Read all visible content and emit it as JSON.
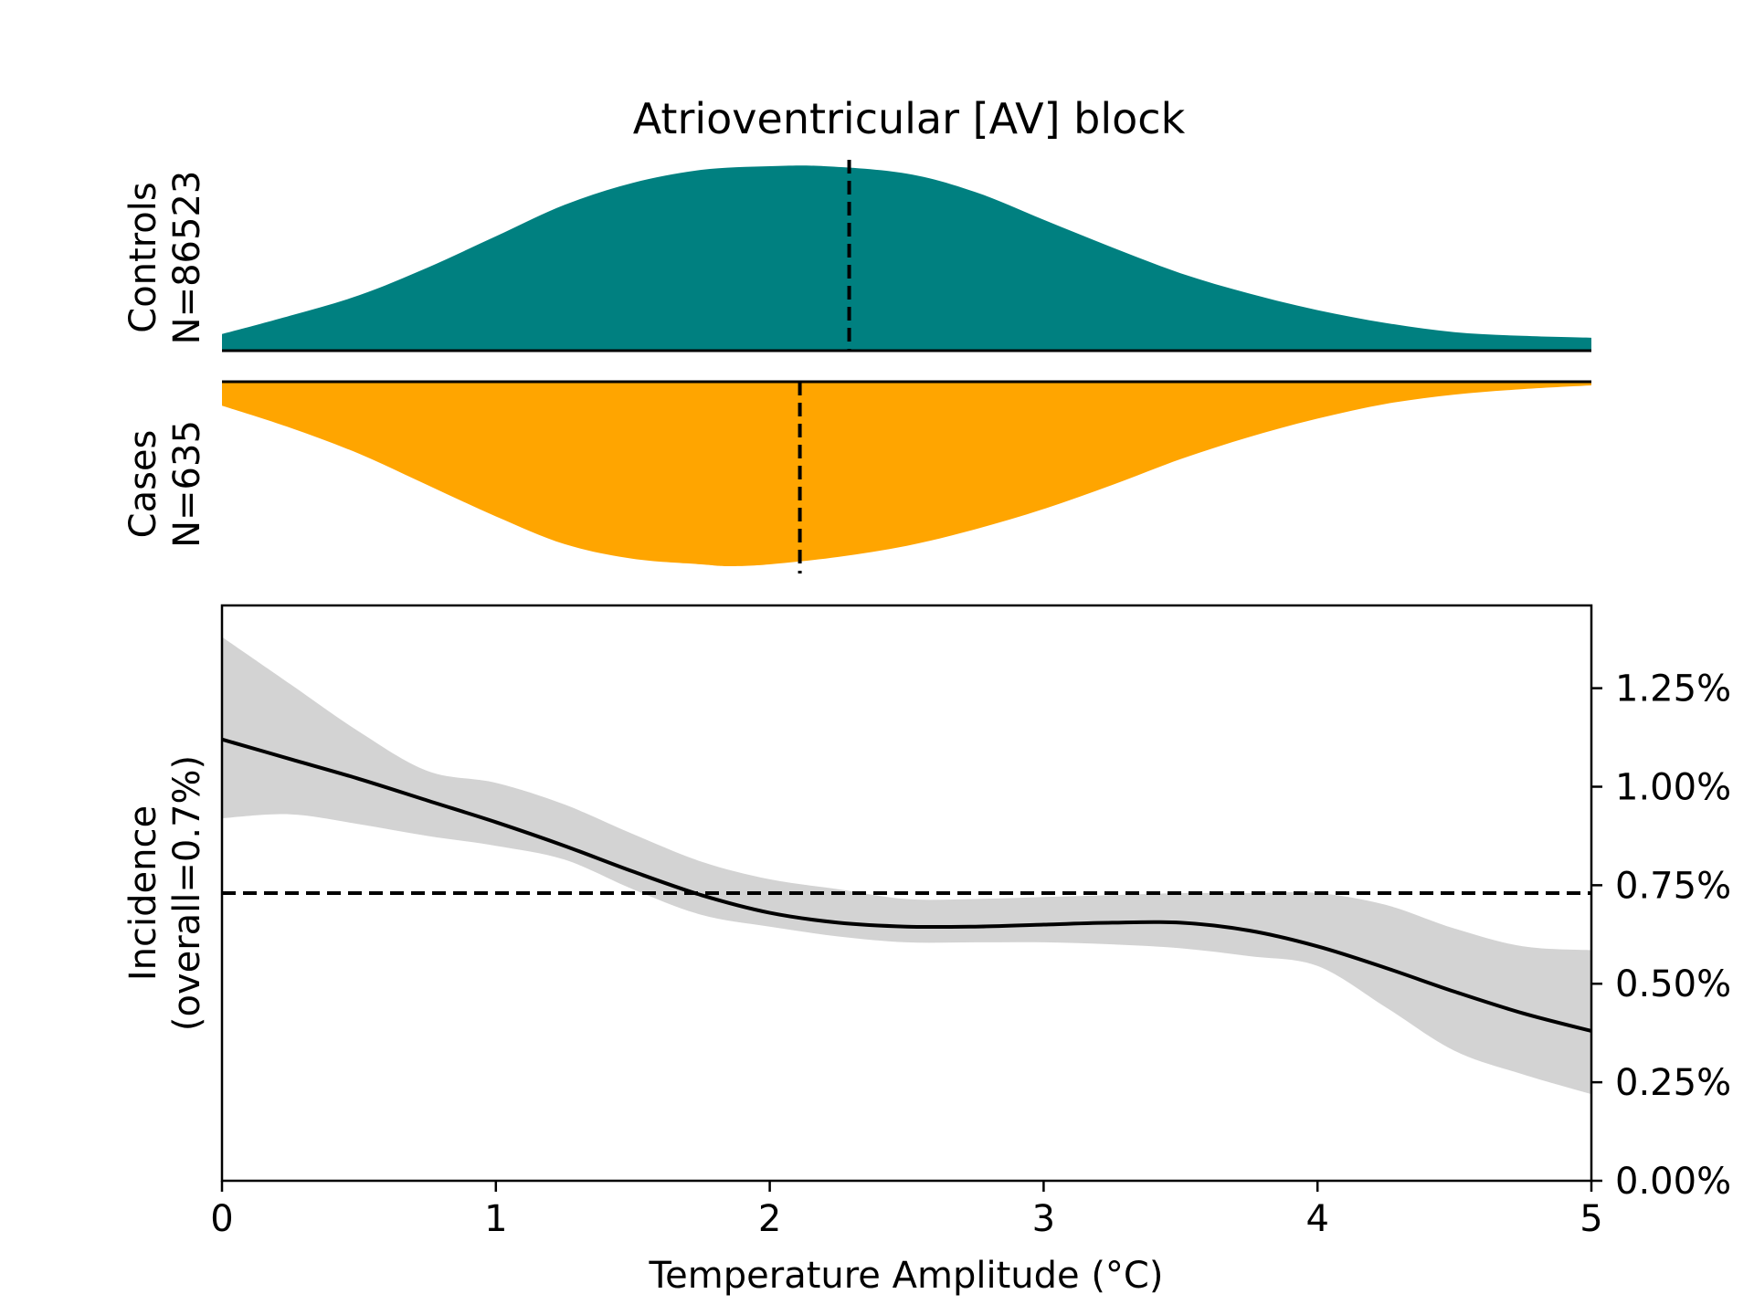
{
  "chart_data": [
    {
      "type": "area",
      "panel": "controls-density",
      "title": "Atrioventricular [AV] block",
      "ylabel_lines": [
        "Controls",
        "N=86523"
      ],
      "color": "#008080",
      "median_marker": 2.29,
      "xlim": [
        0,
        5
      ],
      "x": [
        0,
        0.25,
        0.5,
        0.75,
        1.0,
        1.25,
        1.5,
        1.75,
        2.0,
        2.2,
        2.5,
        2.75,
        3.0,
        3.25,
        3.5,
        3.75,
        4.0,
        4.25,
        4.5,
        4.75,
        5.0
      ],
      "density": [
        0.09,
        0.19,
        0.3,
        0.45,
        0.62,
        0.79,
        0.91,
        0.98,
        1.0,
        1.0,
        0.96,
        0.86,
        0.71,
        0.56,
        0.42,
        0.31,
        0.22,
        0.15,
        0.1,
        0.08,
        0.07
      ]
    },
    {
      "type": "area",
      "panel": "cases-density",
      "ylabel_lines": [
        "Cases",
        "N=635"
      ],
      "color": "#FFA500",
      "median_marker": 2.11,
      "xlim": [
        0,
        5
      ],
      "x": [
        0,
        0.25,
        0.5,
        0.75,
        1.0,
        1.25,
        1.5,
        1.75,
        1.85,
        2.0,
        2.25,
        2.5,
        2.75,
        3.0,
        3.25,
        3.5,
        3.75,
        4.0,
        4.25,
        4.5,
        4.75,
        5.0
      ],
      "density": [
        0.13,
        0.25,
        0.39,
        0.56,
        0.73,
        0.88,
        0.96,
        0.99,
        1.0,
        0.99,
        0.95,
        0.89,
        0.8,
        0.69,
        0.56,
        0.42,
        0.3,
        0.2,
        0.12,
        0.07,
        0.04,
        0.02
      ]
    },
    {
      "type": "line",
      "panel": "incidence",
      "xlabel": "Temperature Amplitude (°C)",
      "ylabel_lines": [
        "Incidence",
        "(overall=0.7%)"
      ],
      "xlim": [
        0,
        5
      ],
      "ylim": [
        0,
        1.46
      ],
      "xticks": [
        0,
        1,
        2,
        3,
        4,
        5
      ],
      "xtick_labels": [
        "0",
        "1",
        "2",
        "3",
        "4",
        "5"
      ],
      "yticks": [
        0,
        0.25,
        0.5,
        0.75,
        1.0,
        1.25
      ],
      "ytick_labels": [
        "0.00%",
        "0.25%",
        "0.50%",
        "0.75%",
        "1.00%",
        "1.25%"
      ],
      "y_axis_side": "right",
      "overall_incidence": 0.73,
      "line_color": "#000000",
      "band_color": "#d3d3d3",
      "x": [
        0,
        0.25,
        0.5,
        0.75,
        1.0,
        1.25,
        1.5,
        1.75,
        2.0,
        2.25,
        2.5,
        2.75,
        3.0,
        3.25,
        3.5,
        3.75,
        4.0,
        4.25,
        4.5,
        4.75,
        5.0
      ],
      "incidence": [
        1.12,
        1.07,
        1.02,
        0.965,
        0.91,
        0.85,
        0.785,
        0.725,
        0.68,
        0.655,
        0.645,
        0.645,
        0.65,
        0.655,
        0.655,
        0.635,
        0.595,
        0.54,
        0.48,
        0.425,
        0.38
      ],
      "ci_upper": [
        1.38,
        1.26,
        1.14,
        1.04,
        1.01,
        0.955,
        0.88,
        0.81,
        0.765,
        0.74,
        0.715,
        0.715,
        0.72,
        0.725,
        0.73,
        0.73,
        0.73,
        0.7,
        0.64,
        0.595,
        0.585
      ],
      "ci_lower": [
        0.92,
        0.93,
        0.905,
        0.875,
        0.85,
        0.815,
        0.74,
        0.675,
        0.645,
        0.62,
        0.605,
        0.605,
        0.605,
        0.6,
        0.59,
        0.57,
        0.545,
        0.44,
        0.33,
        0.27,
        0.22
      ]
    }
  ]
}
